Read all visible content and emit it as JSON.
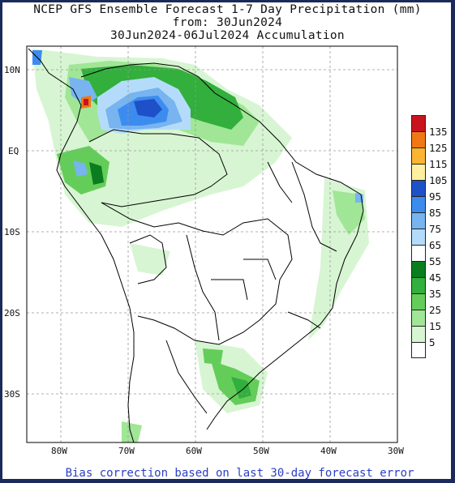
{
  "header": {
    "line1": "NCEP GFS Ensemble Forecast 1-7 Day Precipitation (mm)",
    "line2": "from: 30Jun2024",
    "line3": "30Jun2024-06Jul2024 Accumulation"
  },
  "axes": {
    "lat_labels": [
      "10N",
      "EQ",
      "10S",
      "20S",
      "30S"
    ],
    "lon_labels": [
      "80W",
      "70W",
      "60W",
      "50W",
      "40W",
      "30W"
    ]
  },
  "legend": {
    "units": "mm",
    "bins": [
      {
        "label": "135",
        "color": "#c8141e"
      },
      {
        "label": "125",
        "color": "#f07814"
      },
      {
        "label": "115",
        "color": "#fab432"
      },
      {
        "label": "105",
        "color": "#fff0a0"
      },
      {
        "label": "95",
        "color": "#1e50c8"
      },
      {
        "label": "85",
        "color": "#3c8cf0"
      },
      {
        "label": "75",
        "color": "#78b4f0"
      },
      {
        "label": "65",
        "color": "#b4dcfa"
      },
      {
        "label": "55",
        "color": "#ffffff"
      },
      {
        "label": "45",
        "color": "#0a7d1e"
      },
      {
        "label": "35",
        "color": "#32af3c"
      },
      {
        "label": "25",
        "color": "#64cd5a"
      },
      {
        "label": "15",
        "color": "#a0e696"
      },
      {
        "label": "5",
        "color": "#d7f5d2"
      },
      {
        "label": "",
        "color": "#ffffff"
      }
    ]
  },
  "footer": {
    "note": "Bias correction based on last 30-day forecast error"
  },
  "map_meta": {
    "projection": "lat-lon",
    "lat_range": [
      "40S",
      "13N"
    ],
    "lon_range": [
      "85W",
      "30W"
    ],
    "grid": "dashed"
  }
}
